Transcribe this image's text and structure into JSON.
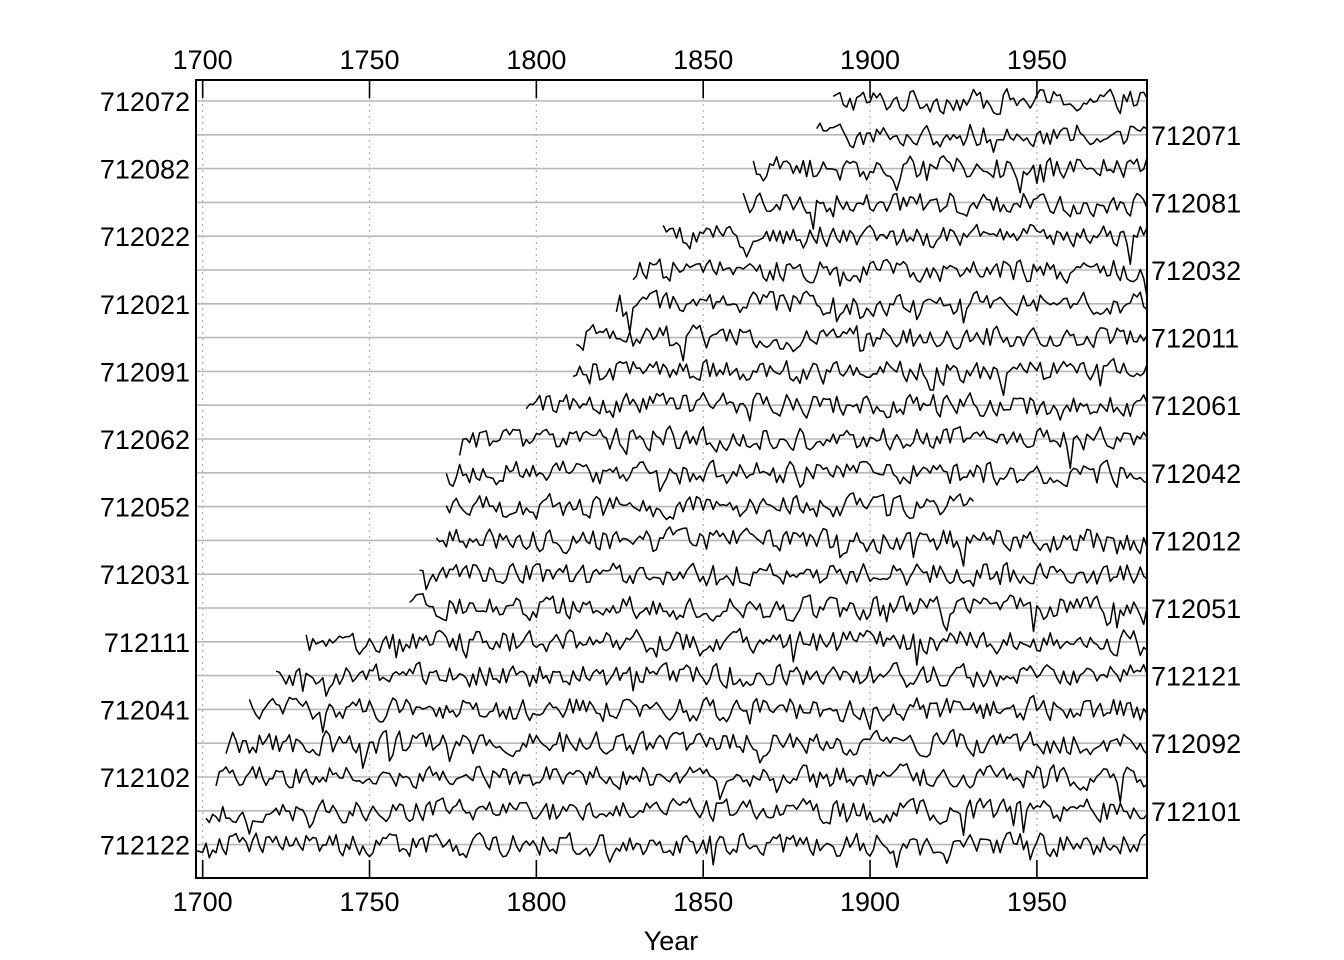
{
  "chart_data": {
    "type": "line",
    "title": "",
    "xlabel": "Year",
    "ylabel": "",
    "xlim": [
      1698,
      1983
    ],
    "x_ticks": [
      1700,
      1750,
      1800,
      1850,
      1900,
      1950
    ],
    "x_tick_labels": [
      "1700",
      "1750",
      "1800",
      "1850",
      "1900",
      "1950"
    ],
    "x_grid": "dotted vertical lines at x ticks",
    "y_grid": "horizontal baseline per series",
    "left_labels": [
      "712072",
      "712082",
      "712022",
      "712021",
      "712091",
      "712062",
      "712052",
      "712031",
      "712111",
      "712041",
      "712102",
      "712122"
    ],
    "right_labels": [
      "712071",
      "712081",
      "712032",
      "712011",
      "712061",
      "712042",
      "712012",
      "712051",
      "712121",
      "712092",
      "712101"
    ],
    "series": [
      {
        "name": "712072",
        "start": 1889,
        "end": 1983
      },
      {
        "name": "712071",
        "start": 1884,
        "end": 1983
      },
      {
        "name": "712082",
        "start": 1865,
        "end": 1983
      },
      {
        "name": "712081",
        "start": 1862,
        "end": 1983
      },
      {
        "name": "712022",
        "start": 1838,
        "end": 1983
      },
      {
        "name": "712032",
        "start": 1829,
        "end": 1983
      },
      {
        "name": "712021",
        "start": 1824,
        "end": 1983
      },
      {
        "name": "712011",
        "start": 1812,
        "end": 1983
      },
      {
        "name": "712091",
        "start": 1811,
        "end": 1983
      },
      {
        "name": "712061",
        "start": 1797,
        "end": 1983
      },
      {
        "name": "712062",
        "start": 1777,
        "end": 1983
      },
      {
        "name": "712042",
        "start": 1773,
        "end": 1983
      },
      {
        "name": "712052",
        "start": 1773,
        "end": 1931
      },
      {
        "name": "712012",
        "start": 1770,
        "end": 1983
      },
      {
        "name": "712031",
        "start": 1765,
        "end": 1983
      },
      {
        "name": "712051",
        "start": 1762,
        "end": 1983
      },
      {
        "name": "712111",
        "start": 1731,
        "end": 1983
      },
      {
        "name": "712121",
        "start": 1722,
        "end": 1983
      },
      {
        "name": "712041",
        "start": 1714,
        "end": 1983
      },
      {
        "name": "712092",
        "start": 1707,
        "end": 1983
      },
      {
        "name": "712102",
        "start": 1704,
        "end": 1983
      },
      {
        "name": "712101",
        "start": 1701,
        "end": 1983
      },
      {
        "name": "712122",
        "start": 1698,
        "end": 1983
      }
    ]
  }
}
